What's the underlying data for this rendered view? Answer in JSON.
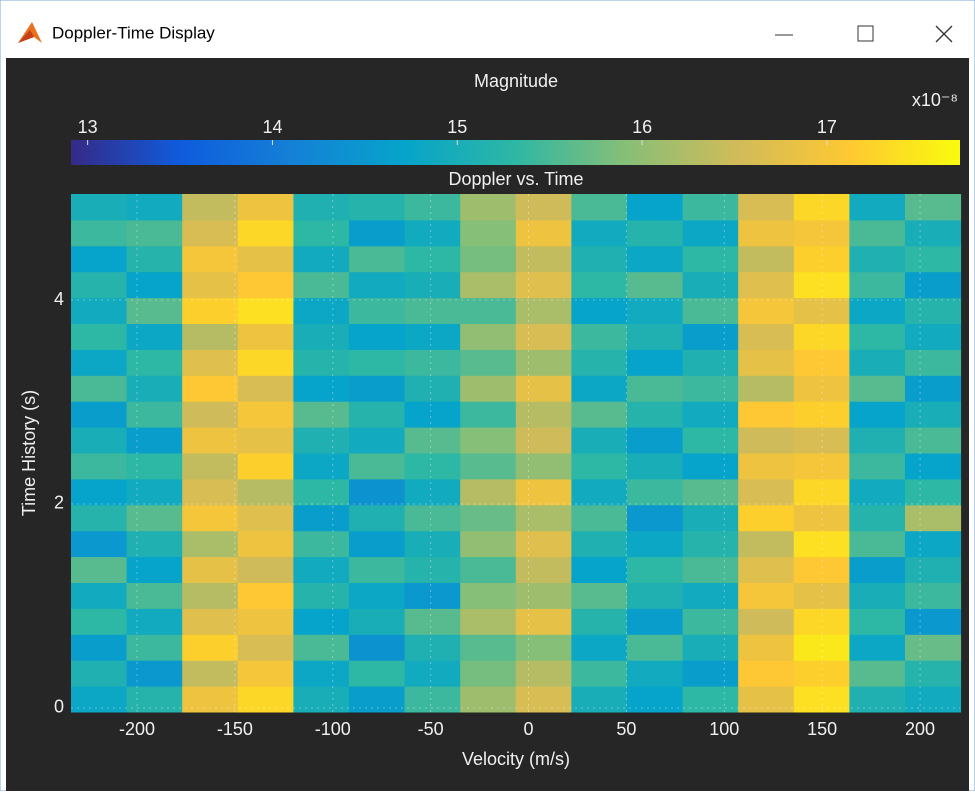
{
  "window": {
    "title": "Doppler-Time Display"
  },
  "chart_data": {
    "type": "heatmap",
    "title": "Doppler vs. Time",
    "xlabel": "Velocity (m/s)",
    "ylabel": "Time History (s)",
    "x": [
      -219.5,
      -191.1,
      -162.7,
      -134.3,
      -105.9,
      -77.5,
      -49.1,
      -20.7,
      7.7,
      36.1,
      64.5,
      92.9,
      121.3,
      149.7,
      178.1,
      206.5
    ],
    "y": [
      0.087,
      0.341,
      0.595,
      0.849,
      1.103,
      1.357,
      1.611,
      1.865,
      2.119,
      2.373,
      2.627,
      2.881,
      3.135,
      3.389,
      3.643,
      3.897,
      4.151,
      4.405,
      4.659,
      4.913
    ],
    "z": [
      [
        14.8,
        15.2,
        16.9,
        17.3,
        15.0,
        14.6,
        15.4,
        16.1,
        16.6,
        15.0,
        14.7,
        15.3,
        16.8,
        17.4,
        15.1,
        14.9
      ],
      [
        15.1,
        14.5,
        16.4,
        17.0,
        14.8,
        15.3,
        14.9,
        15.8,
        16.3,
        15.4,
        14.9,
        14.6,
        17.1,
        17.2,
        15.6,
        15.2
      ],
      [
        14.6,
        15.4,
        17.2,
        16.6,
        15.5,
        14.4,
        15.1,
        15.6,
        15.9,
        14.8,
        15.5,
        15.0,
        16.9,
        17.5,
        14.8,
        15.7
      ],
      [
        15.3,
        14.9,
        16.7,
        16.9,
        14.7,
        15.0,
        15.6,
        16.2,
        16.8,
        15.2,
        14.6,
        15.4,
        16.5,
        17.3,
        15.3,
        14.5
      ],
      [
        14.9,
        15.5,
        16.3,
        17.1,
        15.2,
        14.8,
        14.5,
        15.9,
        16.1,
        15.6,
        15.1,
        14.9,
        17.0,
        16.8,
        15.0,
        15.4
      ],
      [
        15.6,
        14.7,
        16.8,
        16.5,
        14.9,
        15.4,
        15.2,
        15.5,
        16.4,
        14.7,
        15.3,
        15.5,
        16.7,
        17.1,
        14.6,
        15.1
      ],
      [
        14.5,
        15.1,
        16.2,
        16.9,
        15.4,
        14.6,
        15.0,
        16.0,
        16.7,
        15.1,
        14.8,
        15.2,
        16.4,
        17.4,
        15.5,
        14.8
      ],
      [
        15.2,
        15.6,
        17.0,
        16.7,
        14.6,
        15.1,
        15.5,
        15.7,
        16.2,
        15.5,
        14.5,
        15.0,
        17.2,
        16.9,
        15.2,
        16.2
      ],
      [
        14.7,
        14.9,
        16.6,
        16.3,
        15.3,
        14.4,
        14.9,
        16.3,
        16.9,
        14.9,
        15.4,
        15.6,
        16.6,
        17.3,
        14.9,
        15.3
      ],
      [
        15.4,
        15.3,
        16.4,
        17.2,
        14.8,
        15.5,
        15.3,
        15.6,
        16.0,
        15.3,
        15.0,
        14.7,
        16.9,
        17.0,
        15.4,
        14.7
      ],
      [
        15.0,
        14.6,
        16.9,
        16.8,
        15.1,
        14.9,
        15.6,
        15.9,
        16.5,
        15.0,
        14.6,
        15.3,
        16.5,
        16.6,
        15.1,
        15.5
      ],
      [
        14.6,
        15.4,
        16.5,
        17.0,
        15.6,
        15.2,
        14.7,
        15.4,
        16.3,
        15.6,
        15.2,
        14.9,
        17.1,
        17.2,
        14.7,
        15.0
      ],
      [
        15.5,
        15.0,
        17.1,
        16.6,
        14.7,
        14.6,
        15.1,
        16.1,
        16.8,
        14.8,
        15.5,
        15.4,
        16.3,
        16.9,
        15.6,
        14.6
      ],
      [
        14.8,
        15.3,
        16.7,
        17.3,
        15.2,
        15.3,
        15.4,
        15.6,
        16.1,
        15.2,
        14.7,
        15.1,
        16.8,
        17.1,
        15.0,
        15.4
      ],
      [
        15.3,
        14.8,
        16.3,
        16.9,
        15.0,
        14.7,
        14.8,
        16.0,
        16.6,
        15.4,
        15.1,
        14.6,
        16.6,
        17.3,
        15.3,
        14.9
      ],
      [
        14.9,
        15.6,
        17.2,
        17.4,
        14.8,
        15.4,
        15.5,
        15.5,
        16.2,
        14.7,
        14.9,
        15.5,
        17.0,
        16.8,
        14.8,
        15.2
      ],
      [
        15.2,
        14.7,
        16.8,
        17.1,
        15.5,
        14.9,
        15.0,
        16.2,
        16.7,
        15.3,
        15.6,
        15.0,
        16.7,
        17.4,
        15.4,
        14.6
      ],
      [
        14.7,
        15.2,
        17.0,
        16.8,
        14.9,
        15.5,
        15.3,
        15.8,
        16.4,
        15.1,
        14.8,
        15.3,
        16.4,
        17.2,
        15.1,
        15.3
      ],
      [
        15.4,
        15.5,
        16.6,
        17.3,
        15.3,
        14.6,
        14.9,
        15.9,
        16.9,
        14.9,
        15.2,
        14.8,
        16.9,
        17.0,
        15.5,
        15.0
      ],
      [
        15.0,
        14.9,
        16.4,
        16.9,
        15.1,
        15.2,
        15.4,
        16.1,
        16.5,
        15.5,
        14.7,
        15.4,
        16.6,
        17.3,
        14.9,
        15.6
      ]
    ],
    "xlim": [
      -233.7,
      220.4
    ],
    "ylim": [
      -0.04,
      5.04
    ],
    "xticks": [
      -200,
      -150,
      -100,
      -50,
      0,
      50,
      100,
      150,
      200
    ],
    "yticks": [
      0,
      2,
      4
    ],
    "grid": true,
    "colorbar": {
      "label": "Magnitude",
      "exponent": "x10⁻⁸",
      "lim": [
        12.91,
        17.72
      ],
      "ticks": [
        13,
        14,
        15,
        16,
        17
      ]
    },
    "colormap": [
      "#352a87",
      "#0f5cdd",
      "#1481d6",
      "#06a4ca",
      "#2eb7a4",
      "#87bf77",
      "#d1bb59",
      "#fec832",
      "#f9fb0e"
    ]
  }
}
